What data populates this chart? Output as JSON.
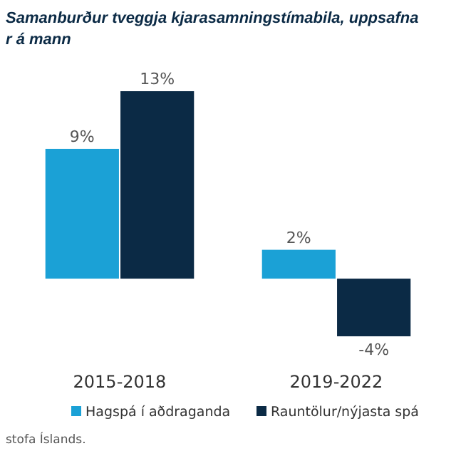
{
  "chart_data": {
    "type": "bar",
    "title": "Samanburður tveggja kjarasamningstímabila, uppsafna",
    "subtitle": "r á mann",
    "categories": [
      "2015-2018",
      "2019-2022"
    ],
    "series": [
      {
        "name": "Hagspá í aðdraganda",
        "color": "#1ba1d6",
        "values": [
          9,
          2
        ],
        "value_labels": [
          "9%",
          "2%"
        ]
      },
      {
        "name": "Rauntölur/nýjasta spá",
        "color": "#0b2a45",
        "values": [
          13,
          -4
        ],
        "value_labels": [
          "13%",
          "-4%"
        ]
      }
    ],
    "legend": "bottom",
    "annotations": [
      "stofa Íslands."
    ]
  }
}
